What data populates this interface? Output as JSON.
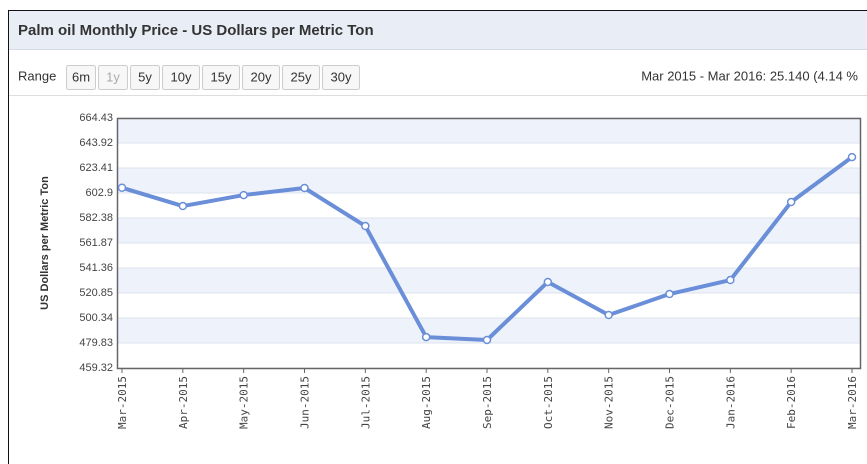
{
  "chart_data": {
    "type": "line",
    "title": "Palm oil Monthly Price - US Dollars per Metric Ton",
    "range_label": "Range",
    "range_options": [
      "6m",
      "1y",
      "5y",
      "10y",
      "15y",
      "20y",
      "25y",
      "30y"
    ],
    "selected": "1y",
    "change_summary": "Mar 2015 - Mar 2016: 25.140 (4.14 %",
    "y_label": "US Dollars per Metric Ton",
    "categories": [
      "Mar-2015",
      "Apr-2015",
      "May-2015",
      "Jun-2015",
      "Jul-2015",
      "Aug-2015",
      "Sep-2015",
      "Oct-2015",
      "Nov-2015",
      "Dec-2015",
      "Jan-2016",
      "Feb-2016",
      "Mar-2016"
    ],
    "series": [
      {
        "name": "Palm oil",
        "color": "#6a8fd8",
        "values": [
          607.2,
          592.2,
          601.2,
          607.0,
          575.8,
          484.7,
          482.3,
          529.9,
          502.8,
          520.0,
          531.5,
          595.5,
          632.34
        ]
      }
    ],
    "ylim": [
      459.32,
      664.43
    ],
    "yticks": [
      459.32,
      479.83,
      500.34,
      520.85,
      541.36,
      561.87,
      582.38,
      602.9,
      623.41,
      643.92,
      664.43
    ],
    "grid": true
  }
}
